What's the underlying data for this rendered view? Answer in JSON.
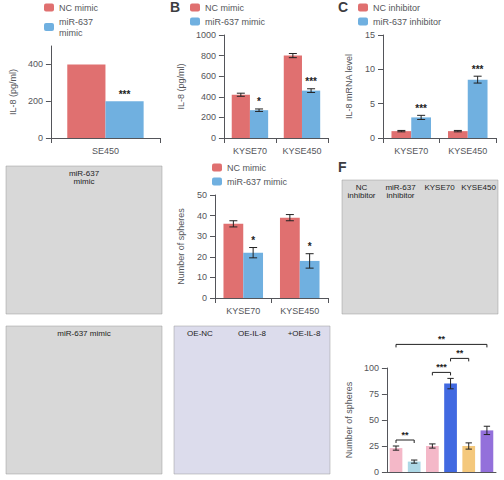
{
  "chart_data": [
    {
      "type": "bar",
      "ylabel": "IL-8 (pg/ml)",
      "categories": [
        "SE450"
      ],
      "series": [
        {
          "name": "NC mimic",
          "color": "#E07070",
          "values": [
            400
          ]
        },
        {
          "name": "miR-637\nmimic",
          "color": "#70B0E0",
          "values": [
            200
          ],
          "annotations": [
            "***"
          ]
        }
      ],
      "ylim": [
        0,
        500
      ],
      "yticks": [
        0,
        200,
        400
      ],
      "legend": "upper left",
      "grid": false
    },
    {
      "type": "bar",
      "title": "B",
      "ylabel": "IL-8 (pg/ml)",
      "categories": [
        "KYSE70",
        "KYSE450"
      ],
      "series": [
        {
          "name": "NC mimic",
          "color": "#E07070",
          "values": [
            420,
            800
          ],
          "errors": [
            15,
            20
          ]
        },
        {
          "name": "miR-637 mimic",
          "color": "#70B0E0",
          "values": [
            270,
            460
          ],
          "errors": [
            12,
            18
          ],
          "annotations": [
            "*",
            "***"
          ]
        }
      ],
      "ylim": [
        0,
        1000
      ],
      "yticks": [
        0,
        200,
        400,
        600,
        800,
        1000
      ],
      "legend": "upper left",
      "grid": false
    },
    {
      "type": "bar",
      "title": "C",
      "ylabel": "IL-8 mRNA level",
      "categories": [
        "KYSE70",
        "KYSE450"
      ],
      "series": [
        {
          "name": "NC inhibitor",
          "color": "#E07070",
          "values": [
            1.0,
            1.0
          ],
          "errors": [
            0.1,
            0.1
          ]
        },
        {
          "name": "miR-637 inhibitor",
          "color": "#70B0E0",
          "values": [
            3.0,
            8.5
          ],
          "errors": [
            0.3,
            0.5
          ],
          "annotations": [
            "***",
            "***"
          ]
        }
      ],
      "ylim": [
        0,
        15
      ],
      "yticks": [
        0,
        5,
        10,
        15
      ],
      "legend": "upper left",
      "grid": false
    },
    {
      "type": "image",
      "color": "#d8d8d8",
      "annotations": [
        "miR-637\nmimic"
      ]
    },
    {
      "type": "bar",
      "ylabel": "Number of spheres",
      "categories": [
        "KYSE70",
        "KYSE450"
      ],
      "series": [
        {
          "name": "NC mimic",
          "color": "#E07070",
          "values": [
            36,
            39
          ],
          "errors": [
            1.5,
            1.5
          ]
        },
        {
          "name": "miR-637 mimic",
          "color": "#70B0E0",
          "values": [
            22,
            18
          ],
          "errors": [
            2.5,
            3.5
          ],
          "annotations": [
            "*",
            "*"
          ]
        }
      ],
      "ylim": [
        0,
        50
      ],
      "yticks": [
        0,
        10,
        20,
        30,
        40,
        50
      ],
      "legend": "upper left",
      "grid": false
    },
    {
      "type": "image",
      "title": "F",
      "color": "#d8d8d8",
      "annotations": [
        "NC\ninhibitor",
        "miR-637\ninhibitor",
        "KYSE70",
        "KYSE450"
      ]
    },
    {
      "type": "image",
      "color": "#d8d8d8",
      "annotations": [
        "miR-637 mimic"
      ]
    },
    {
      "type": "image",
      "color": "#dcdcec",
      "annotations": [
        "OE-NC",
        "OE-IL-8",
        "+OE-IL-8"
      ]
    },
    {
      "type": "bar",
      "ylabel": "Number of spheres",
      "categories": [
        null,
        null,
        null,
        null,
        null,
        null
      ],
      "values": [
        23,
        10,
        25,
        85,
        25,
        40
      ],
      "errors": [
        2,
        1.5,
        2,
        5,
        3,
        4
      ],
      "colors": [
        "#F4B8C8",
        "#ADD8E6",
        "#F4B8C8",
        "#4169E1",
        "#F4C87C",
        "#9370DB"
      ],
      "ylim": [
        0,
        100
      ],
      "yticks": [
        0,
        25,
        50,
        75,
        100
      ],
      "tick_labels": "y",
      "grid": false,
      "annotations": [
        {
          "text": "**",
          "from": 0,
          "to": 1
        },
        {
          "text": "***",
          "from": 2,
          "to": 3
        },
        {
          "text": "**",
          "from": 3,
          "to": 4
        },
        {
          "text": "**",
          "from": 0,
          "to": 5
        }
      ]
    }
  ]
}
